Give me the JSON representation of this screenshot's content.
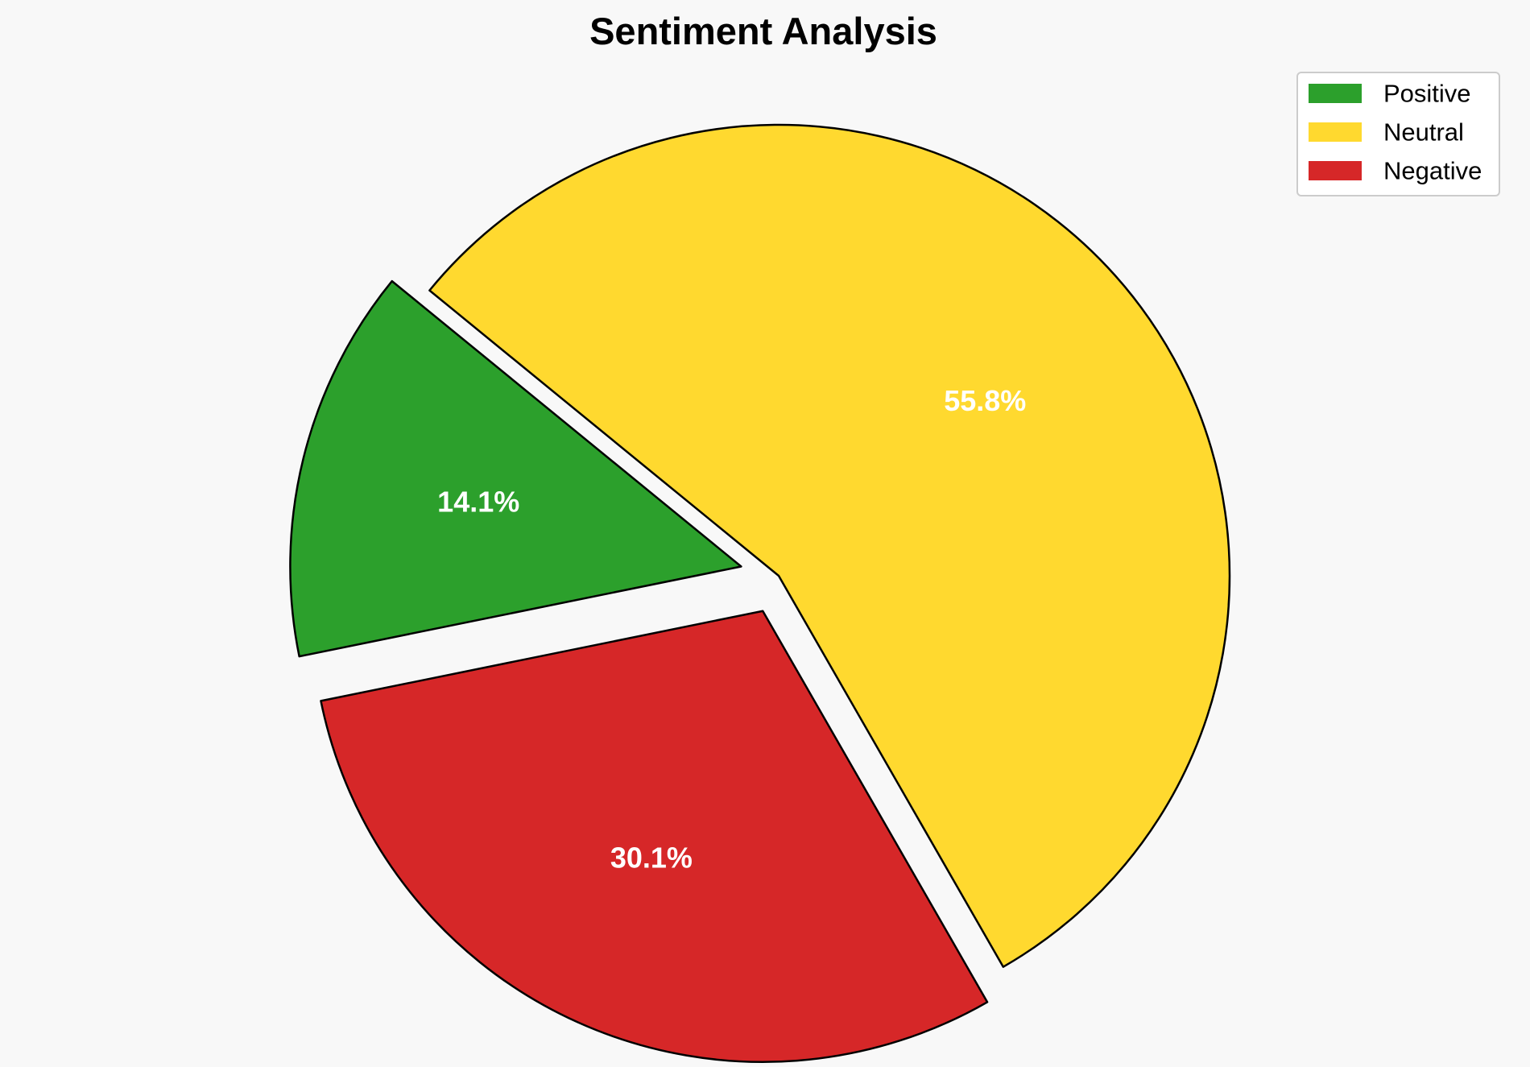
{
  "chart_data": {
    "type": "pie",
    "title": "Sentiment Analysis",
    "categories": [
      "Positive",
      "Neutral",
      "Negative"
    ],
    "values": [
      14.1,
      55.8,
      30.1
    ],
    "value_labels": [
      "14.1%",
      "55.8%",
      "30.1%"
    ],
    "colors": [
      "#2ca02c",
      "#ffd92f",
      "#d62728"
    ],
    "exploded": [
      true,
      false,
      true
    ],
    "edge_color": "#000000",
    "label_color": "#ffffff",
    "legend_position": "top-right"
  }
}
